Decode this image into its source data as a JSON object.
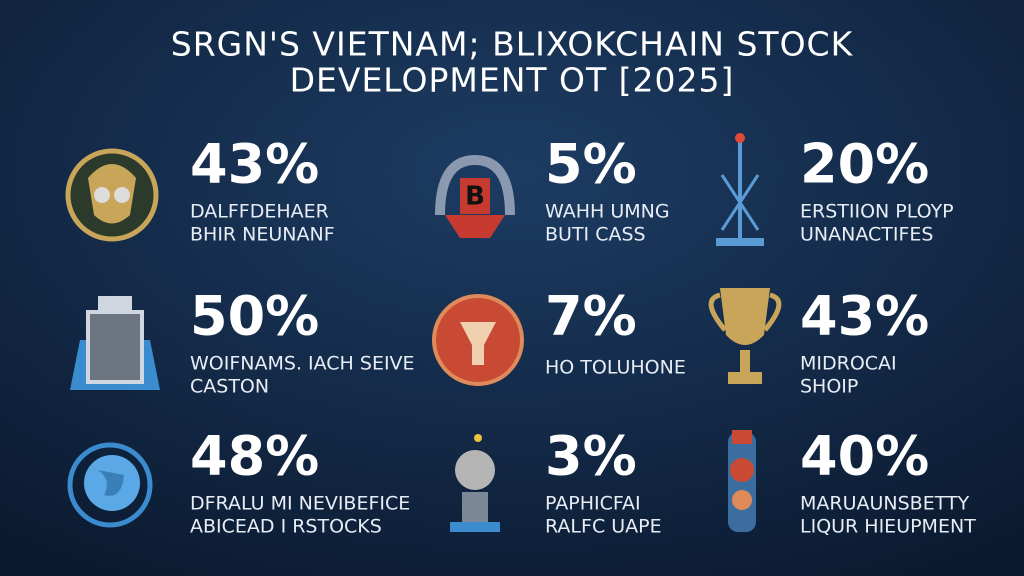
{
  "title": {
    "line1": "SRGN'S VIETNAM; BLIXOKCHAIN STOCK",
    "line2": "DEVELOPMENT OT [2025]"
  },
  "items": [
    {
      "stat": "43%",
      "lines": [
        "DALFFDEHAER",
        "BHIR NEUNANF"
      ]
    },
    {
      "stat": "5%",
      "lines": [
        "WAHH UMNG",
        "BUTI CASS"
      ]
    },
    {
      "stat": "20%",
      "lines": [
        "ERSTIION PLOYP",
        "UNANACTIFES"
      ]
    },
    {
      "stat": "50%",
      "lines": [
        "WOIFNAMS. IACH SEIVE",
        "CASTON"
      ]
    },
    {
      "stat": "7%",
      "lines": [
        "HO TOLUHONE"
      ]
    },
    {
      "stat": "43%",
      "lines": [
        "MIDROCAI",
        "SHOIP"
      ]
    },
    {
      "stat": "48%",
      "lines": [
        "DFRALU MI NEVIBEFICE",
        "ABICEAD I RSTOCKS"
      ]
    },
    {
      "stat": "3%",
      "lines": [
        "PAPHICFAI",
        "RALFC UAPE"
      ]
    },
    {
      "stat": "40%",
      "lines": [
        "MARUAUNSBETTY",
        "LIQUR HIEUPMENT"
      ]
    }
  ]
}
